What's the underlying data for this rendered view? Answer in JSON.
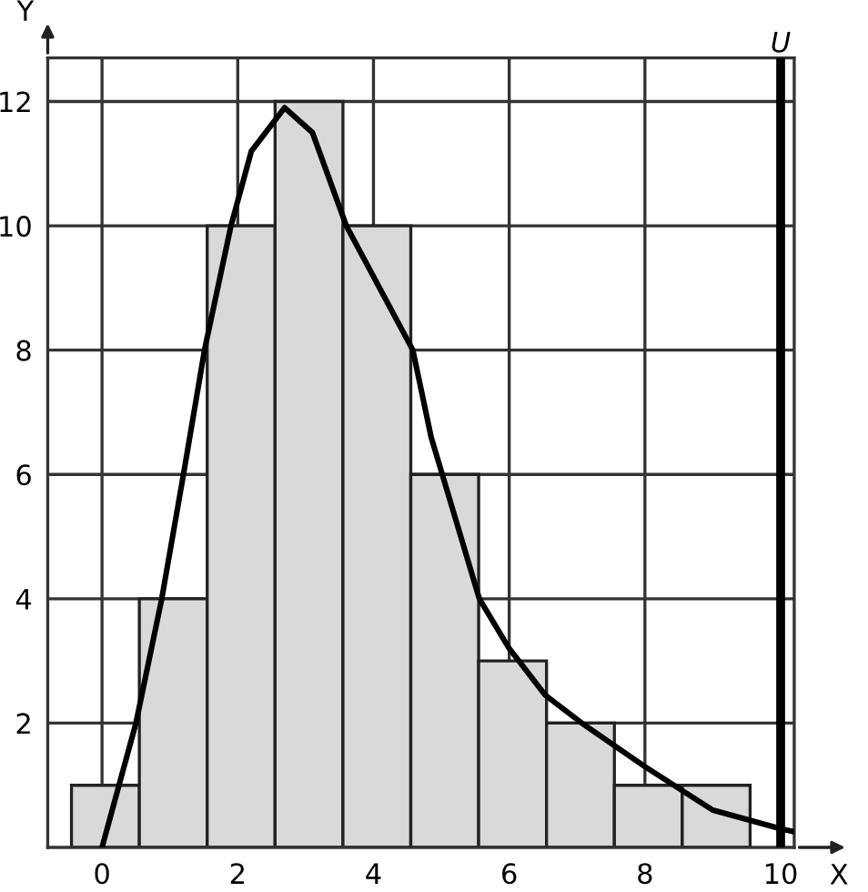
{
  "chart_data": {
    "type": "histogram",
    "xlabel": "X",
    "ylabel": "Y",
    "bins": [
      -0.45,
      0.55,
      1.55,
      2.55,
      3.55,
      4.55,
      5.55,
      6.55,
      7.55,
      8.55,
      9.55
    ],
    "values": [
      1,
      4,
      10,
      12,
      10,
      6,
      3,
      2,
      1,
      1
    ],
    "color": "#d9d9d9",
    "series": [
      {
        "type": "line",
        "color": "#000000",
        "x": [
          0,
          0.5,
          0.88,
          1.2,
          1.51,
          1.9,
          2.2,
          2.69,
          3.1,
          3.6,
          4.58,
          4.85,
          5.56,
          6.0,
          6.53,
          7.07,
          8,
          9,
          10,
          10.2
        ],
        "values": [
          0,
          2,
          4,
          6,
          8,
          10,
          11.2,
          11.9,
          11.5,
          10,
          8,
          6.6,
          4,
          3.2,
          2.45,
          2,
          1.3,
          0.6,
          0.3,
          0.25
        ]
      }
    ],
    "ref_lines": [
      {
        "axis": "x",
        "value": 10,
        "label": "U",
        "color": "#000000"
      }
    ],
    "xlim": [
      -0.8,
      10.2
    ],
    "ylim": [
      0,
      12.7
    ],
    "xticks": [
      0,
      2,
      4,
      6,
      8,
      10
    ],
    "yticks": [
      2,
      4,
      6,
      8,
      10,
      12
    ],
    "grid": true
  }
}
